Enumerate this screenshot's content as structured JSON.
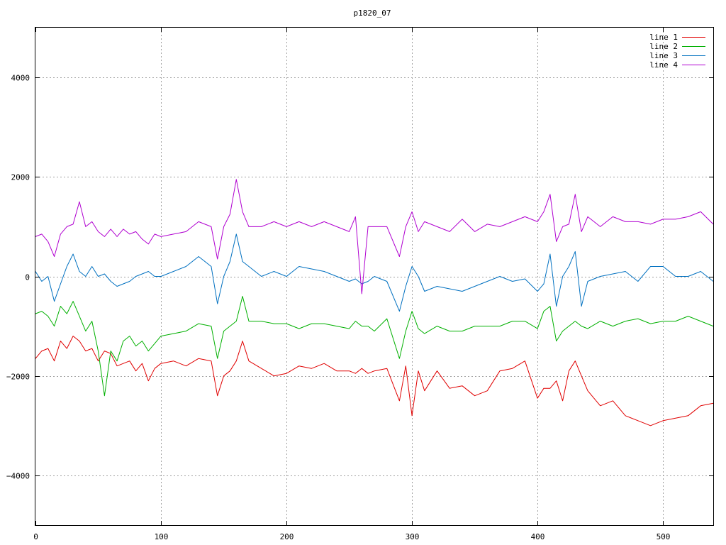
{
  "chart_data": {
    "type": "line",
    "title": "p1820_07",
    "xlabel": "",
    "ylabel": "",
    "xlim": [
      0,
      540
    ],
    "ylim": [
      -5000,
      5000
    ],
    "x_ticks": [
      0,
      100,
      200,
      300,
      400,
      500
    ],
    "y_ticks": [
      -4000,
      -2000,
      0,
      2000,
      4000
    ],
    "x_tick_labels": [
      "0",
      "100",
      "200",
      "300",
      "400",
      "500"
    ],
    "y_tick_labels": [
      "−4000",
      "−2000",
      "0",
      "2000",
      "4000"
    ],
    "grid": true,
    "legend_position": "top-right",
    "x": [
      0,
      5,
      10,
      15,
      20,
      25,
      30,
      35,
      40,
      45,
      50,
      55,
      60,
      65,
      70,
      75,
      80,
      85,
      90,
      95,
      100,
      110,
      120,
      130,
      140,
      145,
      150,
      155,
      160,
      165,
      170,
      180,
      190,
      200,
      210,
      220,
      230,
      240,
      250,
      255,
      260,
      265,
      270,
      280,
      290,
      295,
      300,
      305,
      310,
      320,
      330,
      340,
      350,
      360,
      370,
      380,
      390,
      400,
      405,
      410,
      415,
      420,
      425,
      430,
      435,
      440,
      450,
      460,
      470,
      480,
      490,
      500,
      510,
      520,
      530,
      540
    ],
    "series": [
      {
        "name": "line 1",
        "color": "#e00000",
        "values": [
          -1650,
          -1500,
          -1450,
          -1700,
          -1300,
          -1450,
          -1200,
          -1300,
          -1500,
          -1450,
          -1700,
          -1500,
          -1550,
          -1800,
          -1750,
          -1700,
          -1900,
          -1750,
          -2100,
          -1850,
          -1750,
          -1700,
          -1800,
          -1650,
          -1700,
          -2400,
          -2000,
          -1900,
          -1700,
          -1300,
          -1700,
          -1850,
          -2000,
          -1950,
          -1800,
          -1850,
          -1750,
          -1900,
          -1900,
          -1950,
          -1850,
          -1950,
          -1900,
          -1850,
          -2500,
          -1800,
          -2800,
          -1900,
          -2300,
          -1900,
          -2250,
          -2200,
          -2400,
          -2300,
          -1900,
          -1850,
          -1700,
          -2450,
          -2250,
          -2250,
          -2100,
          -2500,
          -1900,
          -1700,
          -2000,
          -2300,
          -2600,
          -2500,
          -2800,
          -2900,
          -3000,
          -2900,
          -2850,
          -2800,
          -2600,
          -2550
        ]
      },
      {
        "name": "line 2",
        "color": "#00b000",
        "values": [
          -750,
          -700,
          -800,
          -1000,
          -600,
          -750,
          -500,
          -800,
          -1100,
          -900,
          -1500,
          -2400,
          -1500,
          -1700,
          -1300,
          -1200,
          -1400,
          -1300,
          -1500,
          -1350,
          -1200,
          -1150,
          -1100,
          -950,
          -1000,
          -1650,
          -1100,
          -1000,
          -900,
          -400,
          -900,
          -900,
          -950,
          -950,
          -1050,
          -950,
          -950,
          -1000,
          -1050,
          -900,
          -1000,
          -1000,
          -1100,
          -850,
          -1650,
          -1100,
          -700,
          -1050,
          -1150,
          -1000,
          -1100,
          -1100,
          -1000,
          -1000,
          -1000,
          -900,
          -900,
          -1050,
          -700,
          -600,
          -1300,
          -1100,
          -1000,
          -900,
          -1000,
          -1050,
          -900,
          -1000,
          -900,
          -850,
          -950,
          -900,
          -900,
          -800,
          -900,
          -1000
        ]
      },
      {
        "name": "line 3",
        "color": "#0070c0",
        "values": [
          100,
          -100,
          0,
          -500,
          -150,
          200,
          450,
          100,
          0,
          200,
          0,
          50,
          -100,
          -200,
          -150,
          -100,
          0,
          50,
          100,
          0,
          0,
          100,
          200,
          400,
          200,
          -550,
          0,
          300,
          850,
          300,
          200,
          0,
          100,
          0,
          200,
          150,
          100,
          0,
          -100,
          -50,
          -150,
          -100,
          0,
          -100,
          -700,
          -200,
          200,
          0,
          -300,
          -200,
          -250,
          -300,
          -200,
          -100,
          0,
          -100,
          -50,
          -300,
          -150,
          450,
          -600,
          0,
          200,
          500,
          -600,
          -100,
          0,
          50,
          100,
          -100,
          200,
          200,
          0,
          0,
          100,
          -100
        ]
      },
      {
        "name": "line 4",
        "color": "#b000d0",
        "values": [
          800,
          850,
          700,
          400,
          850,
          1000,
          1050,
          1500,
          1000,
          1100,
          900,
          800,
          950,
          800,
          950,
          850,
          900,
          750,
          650,
          850,
          800,
          850,
          900,
          1100,
          1000,
          350,
          1000,
          1250,
          1950,
          1300,
          1000,
          1000,
          1100,
          1000,
          1100,
          1000,
          1100,
          1000,
          900,
          1200,
          -350,
          1000,
          1000,
          1000,
          400,
          1000,
          1300,
          900,
          1100,
          1000,
          900,
          1150,
          900,
          1050,
          1000,
          1100,
          1200,
          1100,
          1300,
          1650,
          700,
          1000,
          1050,
          1650,
          900,
          1200,
          1000,
          1200,
          1100,
          1100,
          1050,
          1150,
          1150,
          1200,
          1300,
          1050
        ]
      }
    ]
  }
}
